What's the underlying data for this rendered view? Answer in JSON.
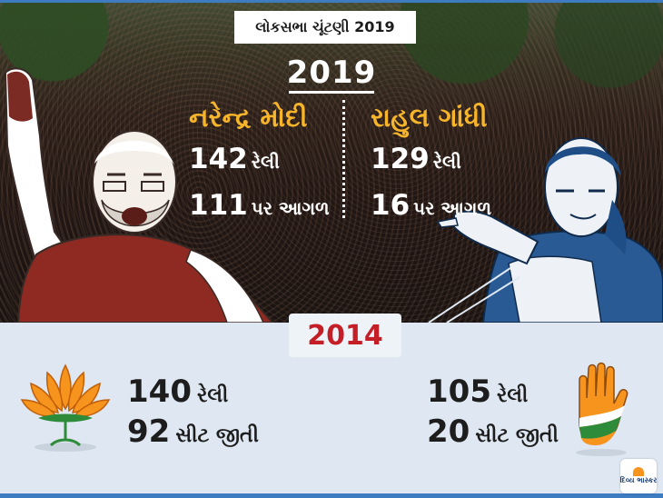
{
  "header": {
    "title": "લોકસભા ચૂંટણી 2019"
  },
  "section_2019": {
    "year": "2019",
    "left": {
      "name": "નરેન્દ્ર મોદી",
      "rallies": {
        "value": "142",
        "label": "રેલી"
      },
      "leading": {
        "value": "111",
        "label": "પર આગળ"
      }
    },
    "right": {
      "name": "રાહુલ ગાંધી",
      "rallies": {
        "value": "129",
        "label": "રેલી"
      },
      "leading": {
        "value": "16",
        "label": "પર આગળ"
      }
    }
  },
  "section_2014": {
    "year": "2014",
    "left": {
      "rallies": {
        "value": "140",
        "label": "રેલી"
      },
      "seats": {
        "value": "92",
        "label": "સીટ જીતી"
      }
    },
    "right": {
      "rallies": {
        "value": "105",
        "label": "રેલી"
      },
      "seats": {
        "value": "20",
        "label": "સીટ જીતી"
      }
    }
  },
  "publisher": {
    "logo_text": "દિવ્ય ભાસ્કર"
  },
  "icons": {
    "left_party": "lotus-icon",
    "right_party": "hand-icon",
    "left_leader": "modi-silhouette",
    "right_leader": "rahul-silhouette"
  },
  "colors": {
    "accent_blue": "#3d7cc1",
    "leader_name_orange": "#f7b52b",
    "year_2014_red": "#c41e26",
    "modi_maroon": "#8e2a22",
    "rahul_blue": "#1f4d85"
  }
}
